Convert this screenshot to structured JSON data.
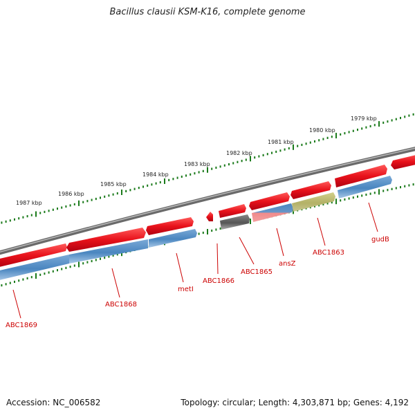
{
  "title": "Bacillus clausii KSM-K16, complete genome",
  "footer": {
    "accession": "Accession: NC_006582",
    "topology": "Topology: circular; Length: 4,303,871 bp; Genes: 4,192"
  },
  "kbp_ticks": [
    "1979 kbp",
    "1980 kbp",
    "1981 kbp",
    "1982 kbp",
    "1983 kbp",
    "1984 kbp",
    "1985 kbp",
    "1986 kbp",
    "1987 kbp"
  ],
  "gene_labels": [
    "ABC1869",
    "ABC1868",
    "metI",
    "ABC1866",
    "ABC1865",
    "ansZ",
    "ABC1863",
    "gudB"
  ],
  "colors": {
    "cds_forward": "#e8121b",
    "cds_reverse": "#4a86c0",
    "rna_dark": "#555555",
    "feature_olive": "#b3b167",
    "backbone": "#8a8a8a",
    "tick_marks": "#1a7a1a",
    "label": "#cc0000"
  }
}
